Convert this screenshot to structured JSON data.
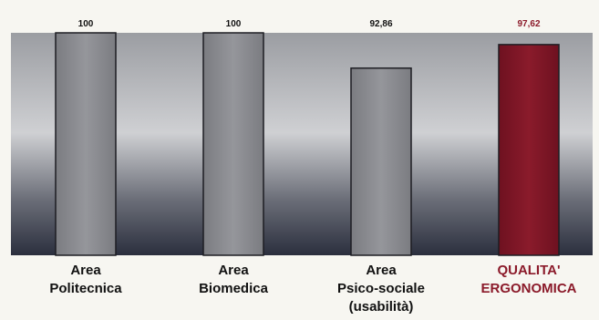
{
  "chart_data": {
    "type": "bar",
    "categories": [
      [
        "Area",
        "Politecnica"
      ],
      [
        "Area",
        "Biomedica"
      ],
      [
        "Area",
        "Psico-sociale",
        "(usabilità)"
      ],
      [
        "QUALITA'",
        "ERGONOMICA"
      ]
    ],
    "values": [
      100,
      100,
      92.86,
      97.62
    ],
    "value_labels": [
      "100",
      "100",
      "92,86",
      "97,62"
    ],
    "bar_colors": [
      "#8b8c91",
      "#8b8c91",
      "#8b8c91",
      "#7d1524"
    ],
    "highlight_text_color": "#8b1a2a",
    "text_color": "#111111",
    "grid": false,
    "legend": "none"
  }
}
